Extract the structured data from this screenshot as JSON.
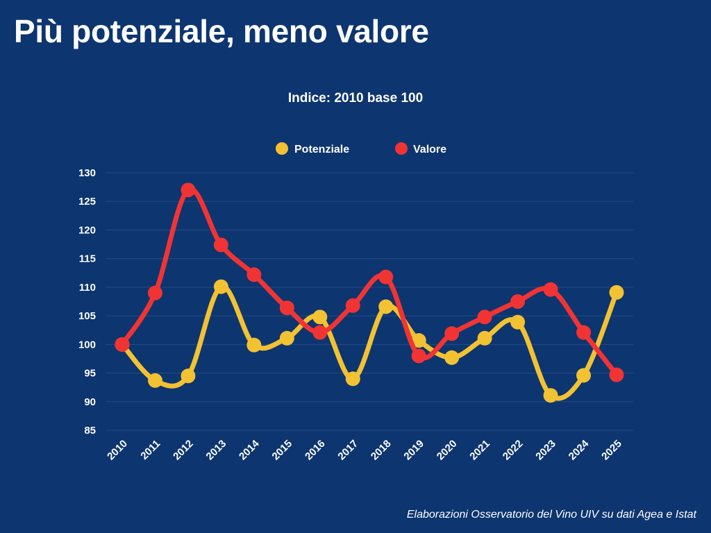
{
  "footer": {
    "source": "Elaborazioni Osservatorio del Vino UIV su dati Agea e Istat"
  },
  "colors": {
    "background": "#0d356f",
    "potenziale": "#f2c232",
    "valore": "#f03434",
    "text": "#ffffff"
  },
  "chart_data": {
    "type": "line",
    "title": "Più potenziale, meno valore",
    "subtitle": "Indice: 2010 base 100",
    "xlabel": "",
    "ylabel": "",
    "x": [
      "2010",
      "2011",
      "2012",
      "2013",
      "2014",
      "2015",
      "2016",
      "2017",
      "2018",
      "2019",
      "2020",
      "2021",
      "2022",
      "2023",
      "2024",
      "2025"
    ],
    "ylim": [
      85,
      130
    ],
    "y_ticks": [
      "85",
      "90",
      "95",
      "100",
      "105",
      "110",
      "115",
      "120",
      "125",
      "130"
    ],
    "grid": true,
    "legend_position": "top-center",
    "series": [
      {
        "name": "Potenziale",
        "color": "#f2c232",
        "values": [
          100,
          93.7,
          94.5,
          110.1,
          99.9,
          101.1,
          104.8,
          94.0,
          106.6,
          100.7,
          97.7,
          101.1,
          103.9,
          91.1,
          94.6,
          109.1
        ]
      },
      {
        "name": "Valore",
        "color": "#f03434",
        "values": [
          100,
          109.0,
          127.0,
          117.4,
          112.2,
          106.4,
          102.1,
          106.8,
          111.8,
          98.0,
          101.9,
          104.8,
          107.5,
          109.6,
          102.1,
          94.7
        ]
      }
    ]
  }
}
